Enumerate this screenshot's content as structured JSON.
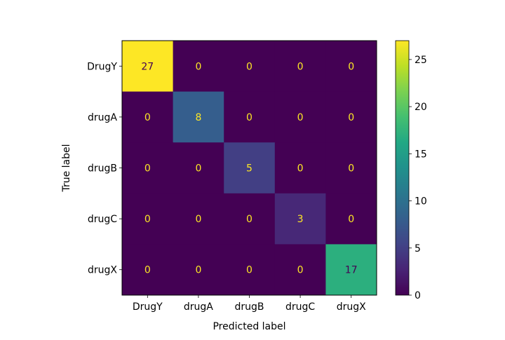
{
  "chart_data": {
    "type": "heatmap",
    "title": "",
    "xlabel": "Predicted label",
    "ylabel": "True label",
    "x_categories": [
      "DrugY",
      "drugA",
      "drugB",
      "drugC",
      "drugX"
    ],
    "y_categories": [
      "DrugY",
      "drugA",
      "drugB",
      "drugC",
      "drugX"
    ],
    "values": [
      [
        27,
        0,
        0,
        0,
        0
      ],
      [
        0,
        8,
        0,
        0,
        0
      ],
      [
        0,
        0,
        5,
        0,
        0
      ],
      [
        0,
        0,
        0,
        3,
        0
      ],
      [
        0,
        0,
        0,
        0,
        17
      ]
    ],
    "colormap": "viridis",
    "colorbar": {
      "range": [
        0,
        27
      ],
      "ticks": [
        0,
        5,
        10,
        15,
        20,
        25
      ]
    },
    "grid": false
  }
}
